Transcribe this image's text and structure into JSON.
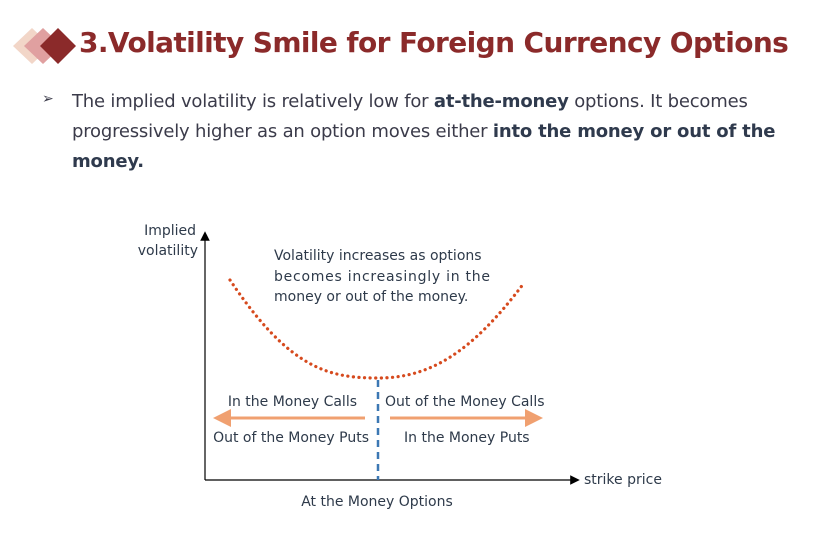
{
  "slide": {
    "title": "3.Volatility Smile for Foreign Currency Options",
    "bullet": {
      "t1": "The implied volatility is relatively low for ",
      "b1": "at-the-money",
      "t2": " options. It becomes progressively higher as an option moves either ",
      "b2": "into the money or out of the money."
    }
  },
  "diagram": {
    "y_axis_label_line1": "Implied",
    "y_axis_label_line2": "volatility",
    "x_axis_label": "strike price",
    "note_line1": "Volatility increases as options",
    "note_line2": "becomes increasingly in the",
    "note_line3": "money or out of the money.",
    "left_top": "In the Money Calls",
    "left_bottom": "Out of the Money Puts",
    "right_top": "Out of the Money Calls",
    "right_bottom": "In the Money Puts",
    "center_label": "At the Money Options"
  },
  "colors": {
    "title": "#8b2a2a",
    "curve": "#d64a1e",
    "arrows": "#f0a070",
    "divider": "#3c78b4"
  }
}
